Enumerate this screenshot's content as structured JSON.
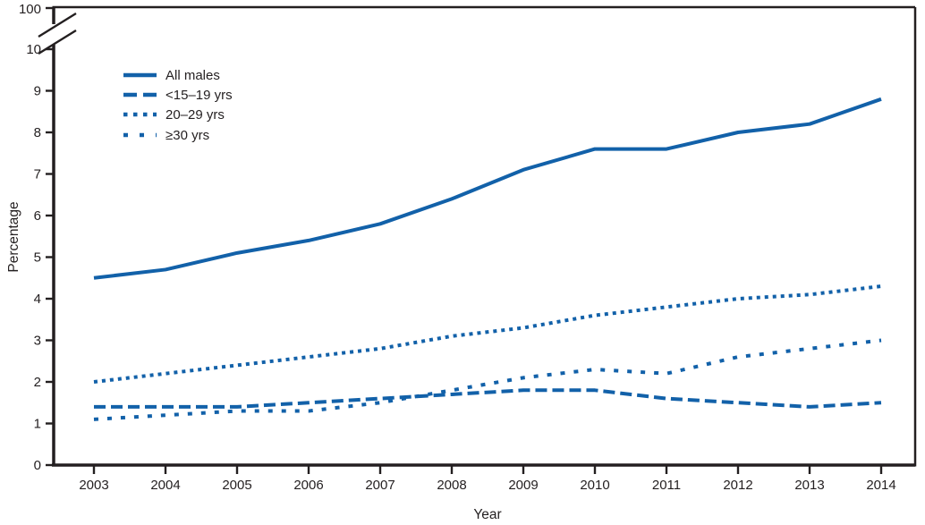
{
  "figure": {
    "background": "#ffffff",
    "axis_color": "#231f20",
    "text_color": "#231f20"
  },
  "chart_data": {
    "type": "line",
    "title": "",
    "xlabel": "Year",
    "ylabel": "Percentage",
    "line_color": "#1261a9",
    "grid": false,
    "legend_position": "top-left",
    "axis_break": true,
    "y_axis_top_label": "100",
    "y_ticks": [
      0,
      1,
      2,
      3,
      4,
      5,
      6,
      7,
      8,
      9,
      10
    ],
    "ylim": [
      0,
      10
    ],
    "x": [
      2003,
      2004,
      2005,
      2006,
      2007,
      2008,
      2009,
      2010,
      2011,
      2012,
      2013,
      2014
    ],
    "series": [
      {
        "name": "All males",
        "style": "solid",
        "values": [
          4.5,
          4.7,
          5.1,
          5.4,
          5.8,
          6.4,
          7.1,
          7.6,
          7.6,
          8.0,
          8.2,
          8.8
        ]
      },
      {
        "name": "<15–19 yrs",
        "style": "long-dash",
        "values": [
          1.4,
          1.4,
          1.4,
          1.5,
          1.6,
          1.7,
          1.8,
          1.8,
          1.6,
          1.5,
          1.4,
          1.5
        ]
      },
      {
        "name": "20–29 yrs",
        "style": "dotted",
        "values": [
          2.0,
          2.2,
          2.4,
          2.6,
          2.8,
          3.1,
          3.3,
          3.6,
          3.8,
          4.0,
          4.1,
          4.3
        ]
      },
      {
        "name": "≥30 yrs",
        "style": "sparse-dash",
        "values": [
          1.1,
          1.2,
          1.3,
          1.3,
          1.5,
          1.8,
          2.1,
          2.3,
          2.2,
          2.6,
          2.8,
          3.0
        ]
      }
    ]
  }
}
